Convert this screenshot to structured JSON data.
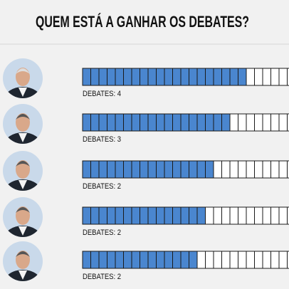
{
  "chart_data": {
    "type": "segmented-bar",
    "title": "QUEM ESTÁ A GANHAR OS DEBATES?",
    "row_labels": [
      "DEBATES: 4",
      "DEBATES: 3",
      "DEBATES: 2",
      "DEBATES: 2",
      "DEBATES: 2"
    ],
    "values": [
      20,
      18,
      16,
      15,
      14
    ],
    "color": "#4a86cf"
  }
}
